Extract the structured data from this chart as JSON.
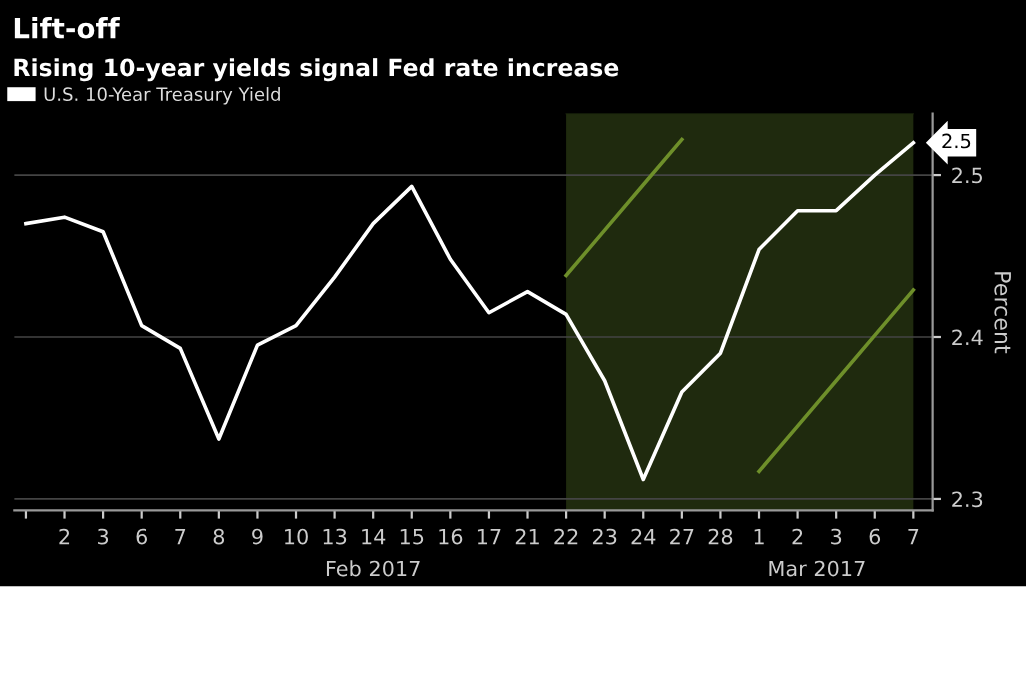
{
  "chart_data": {
    "type": "line",
    "title": "Lift-off",
    "subtitle": "Rising 10-year yields signal Fed rate increase",
    "ylabel": "Percent",
    "categories": [
      null,
      "2",
      "3",
      "6",
      "7",
      "8",
      "9",
      "10",
      "13",
      "14",
      "15",
      "16",
      "17",
      "21",
      "22",
      "23",
      "24",
      "27",
      "28",
      "1",
      "2",
      "3",
      "6",
      "7"
    ],
    "series": [
      {
        "type": "area",
        "color": "#1f2a0e",
        "values": [
          null,
          null,
          null,
          null,
          null,
          null,
          null,
          null,
          null,
          null,
          null,
          null,
          null,
          null,
          2.538,
          2.538,
          2.538,
          2.538,
          2.538,
          2.538,
          2.538,
          2.538,
          2.538,
          2.538
        ]
      },
      {
        "name": "U.S. 10-Year Treasury Yield",
        "color": "#ffffff",
        "values": [
          2.47,
          2.474,
          2.465,
          2.407,
          2.393,
          2.337,
          2.395,
          2.407,
          2.437,
          2.47,
          2.493,
          2.448,
          2.415,
          2.428,
          2.414,
          2.373,
          2.312,
          2.366,
          2.39,
          2.454,
          2.478,
          2.478,
          2.5,
          2.52
        ],
        "value_labels": [
          null,
          null,
          null,
          null,
          null,
          null,
          null,
          null,
          null,
          null,
          null,
          null,
          null,
          null,
          null,
          null,
          null,
          null,
          null,
          null,
          null,
          null,
          null,
          "2.5"
        ]
      },
      {
        "type": "line",
        "color": "#6e8f2a",
        "values": [
          null,
          null,
          null,
          null,
          null,
          null,
          null,
          null,
          null,
          null,
          null,
          null,
          null,
          null,
          2.438,
          2.466,
          2.494,
          2.522,
          null,
          null,
          null,
          null,
          null,
          null
        ]
      },
      {
        "type": "line",
        "color": "#6e8f2a",
        "values": [
          null,
          null,
          null,
          null,
          null,
          null,
          null,
          null,
          null,
          null,
          null,
          null,
          null,
          null,
          null,
          null,
          null,
          null,
          null,
          2.317,
          2.345,
          2.373,
          2.401,
          2.429
        ]
      }
    ],
    "annotations": [
      "Feb 2017",
      "Mar 2017"
    ],
    "ylim": [
      2.293,
      2.538
    ],
    "yticks": [
      2.3,
      2.4,
      2.5
    ],
    "grid": "y",
    "legend": "top left"
  }
}
